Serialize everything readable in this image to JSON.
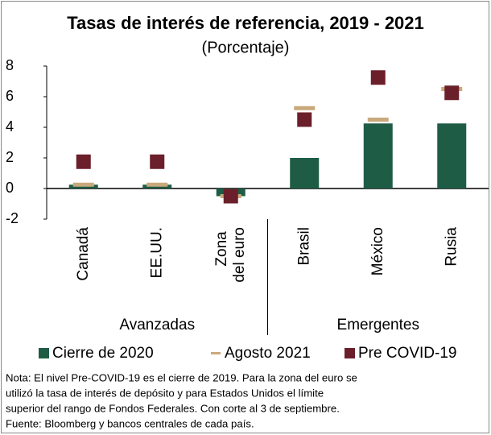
{
  "chart_data": {
    "type": "bar",
    "title": "Tasas de interés de referencia, 2019 - 2021",
    "subtitle": "(Porcentaje)",
    "categories": [
      "Canadá",
      "EE.UU.",
      "Zona del euro",
      "Brasil",
      "México",
      "Rusia"
    ],
    "groups": [
      {
        "name": "Avanzadas",
        "size": 3
      },
      {
        "name": "Emergentes",
        "size": 3
      }
    ],
    "series": [
      {
        "name": "Cierre de 2020",
        "color": "#1f5c45",
        "marker": "bar",
        "values": [
          0.25,
          0.25,
          -0.5,
          2.0,
          4.25,
          4.25
        ]
      },
      {
        "name": "Agosto 2021",
        "color": "#c9a97c",
        "marker": "dash",
        "values": [
          0.25,
          0.25,
          -0.5,
          5.25,
          4.5,
          6.5
        ]
      },
      {
        "name": "Pre COVID-19",
        "color": "#6b1f2a",
        "marker": "square",
        "values": [
          1.75,
          1.75,
          -0.5,
          4.5,
          7.25,
          6.25
        ]
      }
    ],
    "ylim": [
      -2,
      8
    ],
    "yticks": [
      -2,
      0,
      2,
      4,
      6,
      8
    ],
    "note": [
      "Nota: El nivel Pre-COVID-19 es el cierre de 2019. Para la zona del euro se",
      "utilizó la tasa de interés de depósito y para Estados Unidos el límite",
      "superior del rango de Fondos Federales. Con corte al 3 de septiembre.",
      "Fuente: Bloomberg y bancos centrales de cada país."
    ]
  }
}
